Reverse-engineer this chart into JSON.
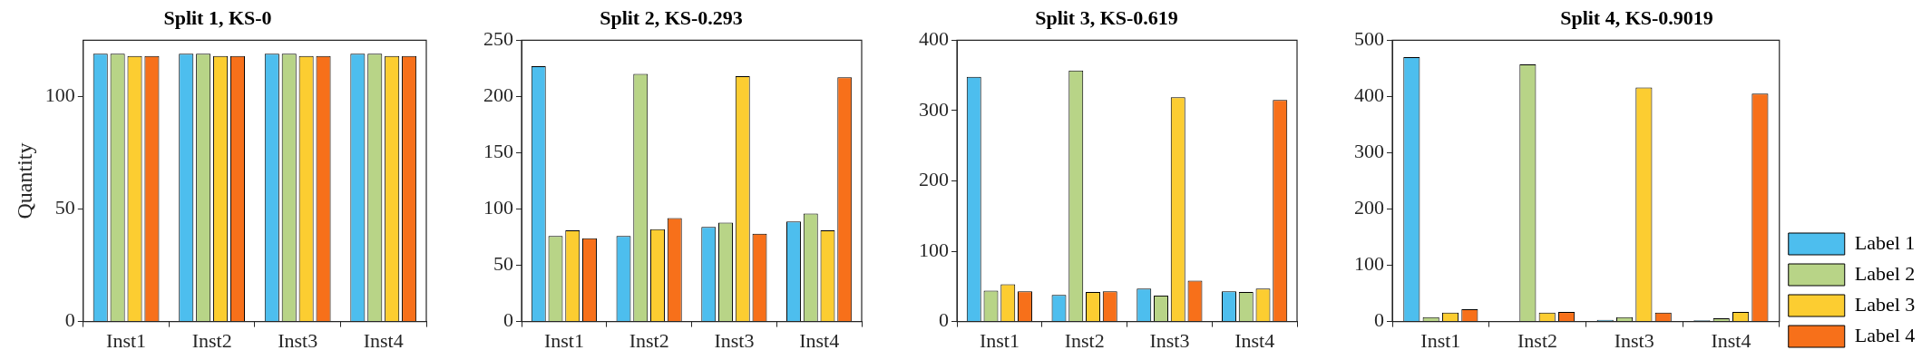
{
  "chart_data": [
    {
      "type": "bar",
      "title": "Split 1, KS-0",
      "ylabel": "Quantity",
      "categories": [
        "Inst1",
        "Inst2",
        "Inst3",
        "Inst4"
      ],
      "ylim": [
        0,
        125
      ],
      "yticks": [
        0,
        50,
        100
      ],
      "grid": false,
      "legend": false,
      "series": [
        {
          "color": "#4dbeee",
          "values": [
            119,
            119,
            119,
            119
          ]
        },
        {
          "color": "#b8d487",
          "values": [
            119,
            119,
            119,
            119
          ]
        },
        {
          "color": "#fccd31",
          "values": [
            118,
            118,
            118,
            118
          ]
        },
        {
          "color": "#f7701a",
          "values": [
            118,
            118,
            118,
            118
          ]
        }
      ]
    },
    {
      "type": "bar",
      "title": "Split 2, KS-0.293",
      "categories": [
        "Inst1",
        "Inst2",
        "Inst3",
        "Inst4"
      ],
      "ylim": [
        0,
        250
      ],
      "yticks": [
        0,
        50,
        100,
        150,
        200,
        250
      ],
      "grid": false,
      "legend": false,
      "series": [
        {
          "color": "#4dbeee",
          "values": [
            227,
            76,
            84,
            89
          ]
        },
        {
          "color": "#b8d487",
          "values": [
            76,
            220,
            88,
            96
          ]
        },
        {
          "color": "#fccd31",
          "values": [
            81,
            82,
            218,
            81
          ]
        },
        {
          "color": "#f7701a",
          "values": [
            74,
            92,
            78,
            217
          ]
        }
      ]
    },
    {
      "type": "bar",
      "title": "Split 3, KS-0.619",
      "categories": [
        "Inst1",
        "Inst2",
        "Inst3",
        "Inst4"
      ],
      "ylim": [
        0,
        400
      ],
      "yticks": [
        0,
        100,
        200,
        300,
        400
      ],
      "grid": false,
      "legend": false,
      "series": [
        {
          "color": "#4dbeee",
          "values": [
            348,
            38,
            47,
            43
          ]
        },
        {
          "color": "#b8d487",
          "values": [
            44,
            357,
            37,
            42
          ]
        },
        {
          "color": "#fccd31",
          "values": [
            53,
            42,
            319,
            47
          ]
        },
        {
          "color": "#f7701a",
          "values": [
            43,
            43,
            58,
            315
          ]
        }
      ]
    },
    {
      "type": "bar",
      "title": "Split 4, KS-0.9019",
      "categories": [
        "Inst1",
        "Inst2",
        "Inst3",
        "Inst4"
      ],
      "ylim": [
        0,
        500
      ],
      "yticks": [
        0,
        100,
        200,
        300,
        400,
        500
      ],
      "grid": false,
      "legend": "right",
      "series": [
        {
          "name": "Label 1",
          "color": "#4dbeee",
          "values": [
            470,
            0,
            3,
            2
          ]
        },
        {
          "name": "Label 2",
          "color": "#b8d487",
          "values": [
            8,
            457,
            8,
            6
          ]
        },
        {
          "name": "Label 3",
          "color": "#fccd31",
          "values": [
            16,
            16,
            416,
            17
          ]
        },
        {
          "name": "Label 4",
          "color": "#f7701a",
          "values": [
            22,
            17,
            16,
            405
          ]
        }
      ]
    }
  ]
}
